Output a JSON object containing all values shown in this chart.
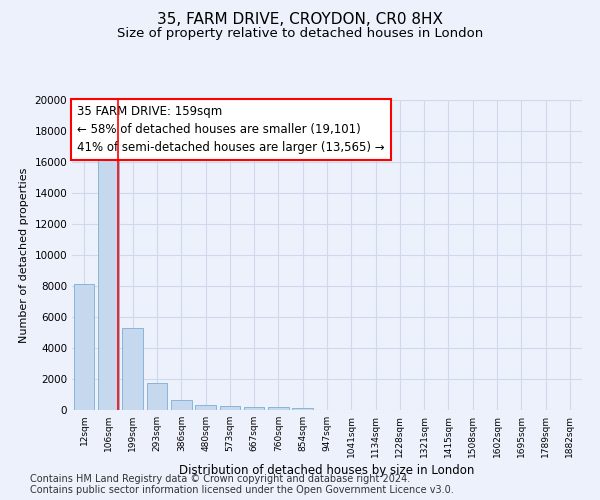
{
  "title_line1": "35, FARM DRIVE, CROYDON, CR0 8HX",
  "title_line2": "Size of property relative to detached houses in London",
  "xlabel": "Distribution of detached houses by size in London",
  "ylabel": "Number of detached properties",
  "categories": [
    "12sqm",
    "106sqm",
    "199sqm",
    "293sqm",
    "386sqm",
    "480sqm",
    "573sqm",
    "667sqm",
    "760sqm",
    "854sqm",
    "947sqm",
    "1041sqm",
    "1134sqm",
    "1228sqm",
    "1321sqm",
    "1415sqm",
    "1508sqm",
    "1602sqm",
    "1695sqm",
    "1789sqm",
    "1882sqm"
  ],
  "values": [
    8100,
    16500,
    5300,
    1750,
    650,
    350,
    275,
    200,
    175,
    150,
    0,
    0,
    0,
    0,
    0,
    0,
    0,
    0,
    0,
    0,
    0
  ],
  "bar_color": "#c5d8ee",
  "bar_edge_color": "#7aafd4",
  "annotation_line1": "35 FARM DRIVE: 159sqm",
  "annotation_line2": "← 58% of detached houses are smaller (19,101)",
  "annotation_line3": "41% of semi-detached houses are larger (13,565) →",
  "red_line_x": 1.4,
  "ylim": [
    0,
    20000
  ],
  "yticks": [
    0,
    2000,
    4000,
    6000,
    8000,
    10000,
    12000,
    14000,
    16000,
    18000,
    20000
  ],
  "footer_line1": "Contains HM Land Registry data © Crown copyright and database right 2024.",
  "footer_line2": "Contains public sector information licensed under the Open Government Licence v3.0.",
  "background_color": "#edf1fb",
  "grid_color": "#d0d8ee",
  "title1_fontsize": 11,
  "title2_fontsize": 9.5,
  "annotation_fontsize": 8.5,
  "ylabel_fontsize": 8,
  "xlabel_fontsize": 8.5,
  "footer_fontsize": 7
}
